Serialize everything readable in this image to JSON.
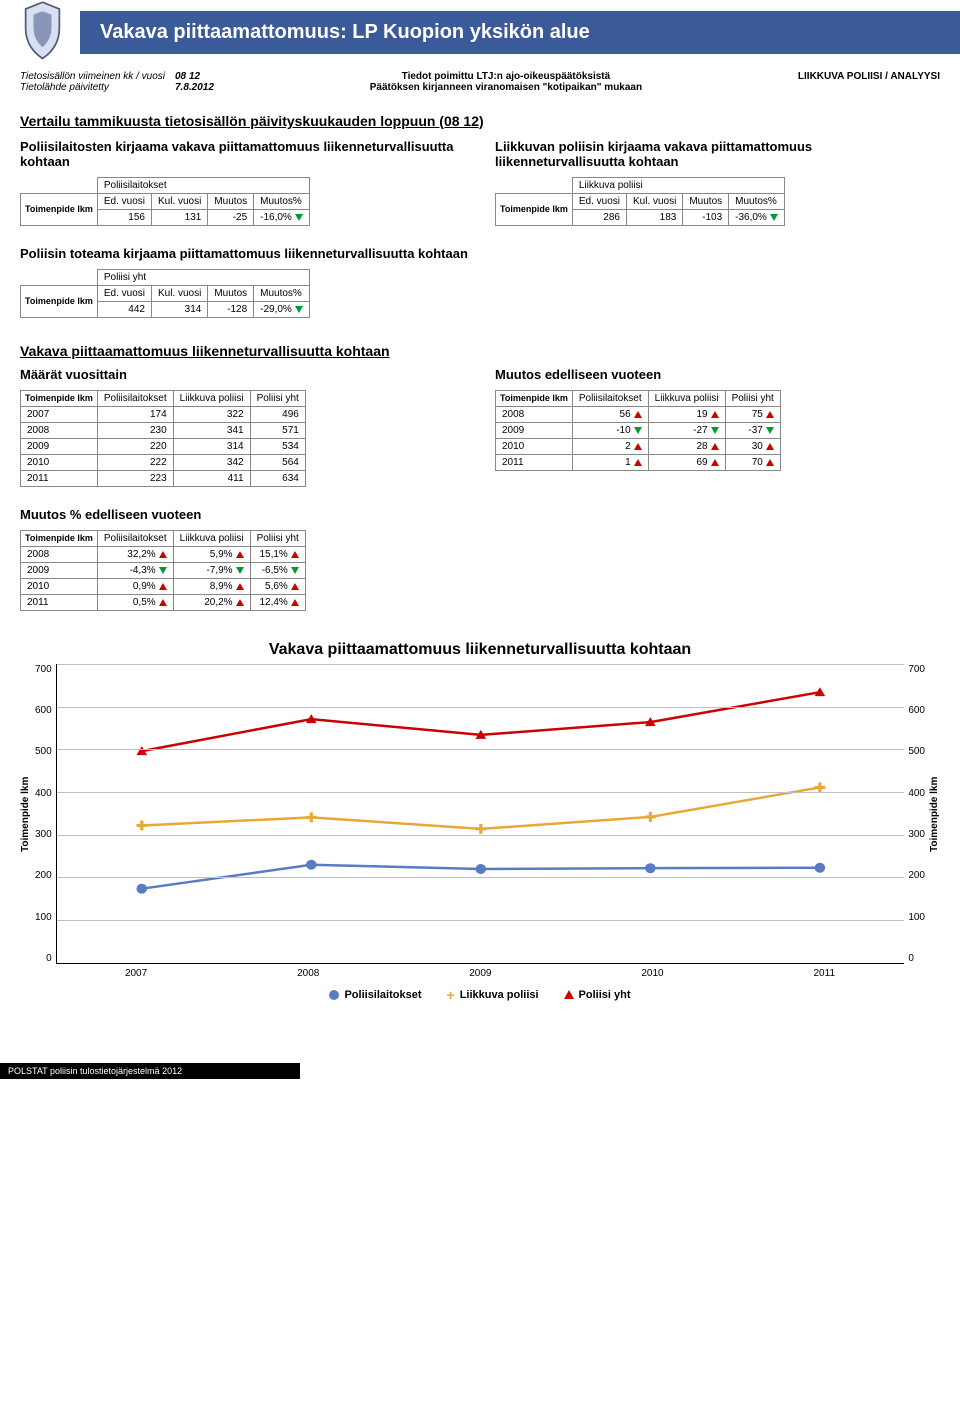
{
  "header": {
    "title": "Vakava piittaamattomuus: LP Kuopion yksikön alue",
    "meta_left_labels": [
      "Tietosisällön viimeinen kk / vuosi",
      "Tietolähde päivitetty"
    ],
    "meta_left_values": [
      "08 12",
      "7.8.2012"
    ],
    "meta_center": [
      "Tiedot poimittu LTJ:n ajo-oikeuspäätöksistä",
      "Päätöksen kirjanneen viranomaisen \"kotipaikan\" mukaan"
    ],
    "meta_right": "LIIKKUVA POLIISI / ANALYYSI"
  },
  "section1": {
    "title": "Vertailu tammikuusta tietosisällön päivityskuukauden loppuun (08 12)",
    "left": {
      "heading": "Poliisilaitosten kirjaama vakava piittamattomuus liikenneturvallisuutta kohtaan",
      "group": "Poliisilaitokset",
      "cols": [
        "Ed. vuosi",
        "Kul. vuosi",
        "Muutos",
        "Muutos%"
      ],
      "rowlabel": "Toimenpide lkm",
      "vals": [
        "156",
        "131",
        "-25",
        "-16,0%"
      ],
      "arrow": "down"
    },
    "right": {
      "heading": "Liikkuvan poliisin kirjaama vakava piittamattomuus liikenneturvallisuutta kohtaan",
      "group": "Liikkuva poliisi",
      "cols": [
        "Ed. vuosi",
        "Kul. vuosi",
        "Muutos",
        "Muutos%"
      ],
      "rowlabel": "Toimenpide lkm",
      "vals": [
        "286",
        "183",
        "-103",
        "-36,0%"
      ],
      "arrow": "down"
    }
  },
  "section2": {
    "title": "Poliisin toteama kirjaama piittamattomuus liikenneturvallisuutta kohtaan",
    "group": "Poliisi yht",
    "cols": [
      "Ed. vuosi",
      "Kul. vuosi",
      "Muutos",
      "Muutos%"
    ],
    "rowlabel": "Toimenpide lkm",
    "vals": [
      "442",
      "314",
      "-128",
      "-29,0%"
    ],
    "arrow": "down"
  },
  "section3": {
    "title": "Vakava piittaamattomuus liikenneturvallisuutta kohtaan",
    "left_title": "Määrät vuosittain",
    "right_title": "Muutos edelliseen vuoteen",
    "cols": [
      "Poliisilaitokset",
      "Liikkuva poliisi",
      "Poliisi yht"
    ],
    "rowlabel": "Toimenpide lkm",
    "years": [
      "2007",
      "2008",
      "2009",
      "2010",
      "2011"
    ],
    "amounts": [
      [
        "174",
        "322",
        "496"
      ],
      [
        "230",
        "341",
        "571"
      ],
      [
        "220",
        "314",
        "534"
      ],
      [
        "222",
        "342",
        "564"
      ],
      [
        "223",
        "411",
        "634"
      ]
    ],
    "change_years": [
      "2008",
      "2009",
      "2010",
      "2011"
    ],
    "change_vals": [
      [
        {
          "v": "56",
          "a": "up"
        },
        {
          "v": "19",
          "a": "up"
        },
        {
          "v": "75",
          "a": "up"
        }
      ],
      [
        {
          "v": "-10",
          "a": "down"
        },
        {
          "v": "-27",
          "a": "down"
        },
        {
          "v": "-37",
          "a": "down"
        }
      ],
      [
        {
          "v": "2",
          "a": "up"
        },
        {
          "v": "28",
          "a": "up"
        },
        {
          "v": "30",
          "a": "up"
        }
      ],
      [
        {
          "v": "1",
          "a": "up"
        },
        {
          "v": "69",
          "a": "up"
        },
        {
          "v": "70",
          "a": "up"
        }
      ]
    ],
    "pct_title": "Muutos % edelliseen vuoteen",
    "pct_vals": [
      [
        {
          "v": "32,2%",
          "a": "up"
        },
        {
          "v": "5,9%",
          "a": "up"
        },
        {
          "v": "15,1%",
          "a": "up"
        }
      ],
      [
        {
          "v": "-4,3%",
          "a": "down"
        },
        {
          "v": "-7,9%",
          "a": "down"
        },
        {
          "v": "-6,5%",
          "a": "down"
        }
      ],
      [
        {
          "v": "0,9%",
          "a": "up"
        },
        {
          "v": "8,9%",
          "a": "up"
        },
        {
          "v": "5,6%",
          "a": "up"
        }
      ],
      [
        {
          "v": "0,5%",
          "a": "up"
        },
        {
          "v": "20,2%",
          "a": "up"
        },
        {
          "v": "12,4%",
          "a": "up"
        }
      ]
    ]
  },
  "chart": {
    "title": "Vakava piittaamattomuus liikenneturvallisuutta kohtaan",
    "y_ticks": [
      "700",
      "600",
      "500",
      "400",
      "300",
      "200",
      "100",
      "0"
    ],
    "y_label": "Toimenpide lkm",
    "x_labels": [
      "2007",
      "2008",
      "2009",
      "2010",
      "2011"
    ],
    "ymax": 700,
    "series": {
      "poliisilaitokset": {
        "color": "#5a7bc4",
        "marker": "circle",
        "vals": [
          174,
          230,
          220,
          222,
          223
        ],
        "label": "Poliisilaitokset"
      },
      "liikkuva": {
        "color": "#e8a838",
        "marker": "plus",
        "vals": [
          322,
          341,
          314,
          342,
          411
        ],
        "label": "Liikkuva poliisi"
      },
      "yht": {
        "color": "#cc0000",
        "marker": "tri",
        "vals": [
          496,
          571,
          534,
          564,
          634
        ],
        "label": "Poliisi yht"
      }
    }
  },
  "footer": "POLSTAT  poliisin tulostietojärjestelmä  2012"
}
